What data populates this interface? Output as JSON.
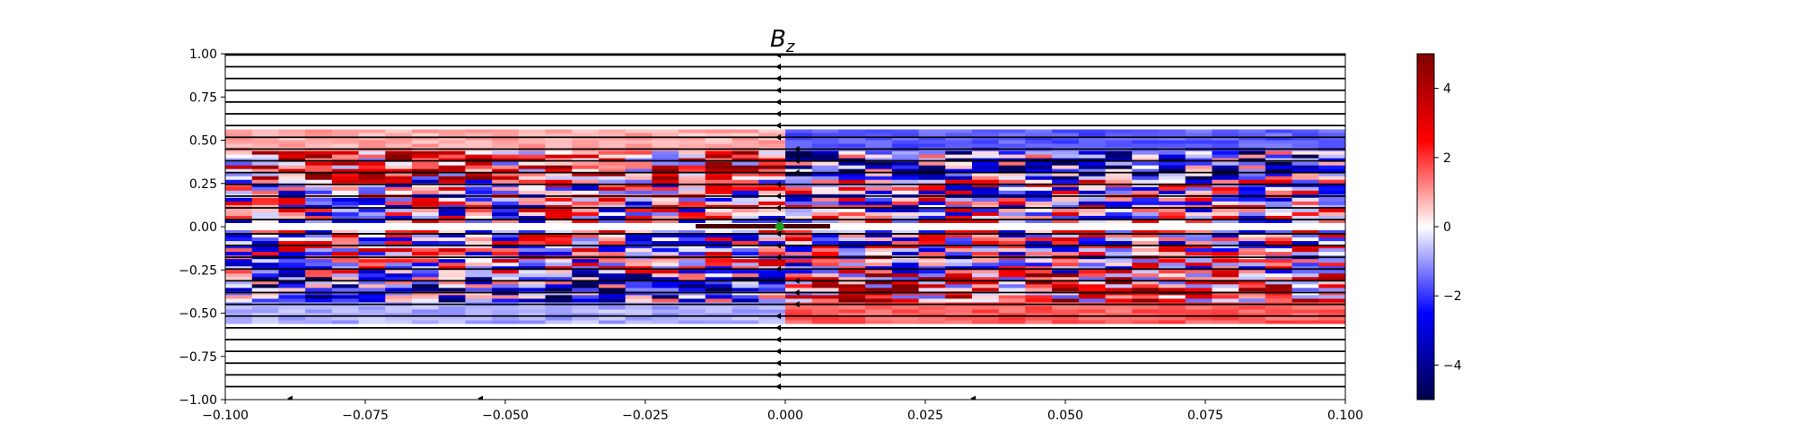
{
  "chart_data": {
    "type": "heatmap",
    "title": "B",
    "title_subscript": "z",
    "xlim": [
      -0.1,
      0.1
    ],
    "ylim": [
      -1.0,
      1.0
    ],
    "xticks": [
      -0.1,
      -0.075,
      -0.05,
      -0.025,
      0.0,
      0.025,
      0.05,
      0.075,
      0.1
    ],
    "xtick_labels": [
      "−0.100",
      "−0.075",
      "−0.050",
      "−0.025",
      "0.000",
      "0.025",
      "0.050",
      "0.075",
      "0.100"
    ],
    "yticks": [
      1.0,
      0.75,
      0.5,
      0.25,
      0.0,
      -0.25,
      -0.5,
      -0.75,
      -1.0
    ],
    "ytick_labels": [
      "1.00",
      "0.75",
      "0.50",
      "0.25",
      "0.00",
      "−0.25",
      "−0.50",
      "−0.75",
      "−1.00"
    ],
    "colorbar": {
      "range": [
        -5,
        5
      ],
      "ticks": [
        4,
        2,
        0,
        -2,
        -4
      ],
      "tick_labels": [
        "4",
        "2",
        "0",
        "−2",
        "−4"
      ],
      "colormap": "seismic"
    },
    "field_line_y": [
      0.993,
      0.925,
      0.857,
      0.789,
      0.721,
      0.653,
      0.585,
      0.517,
      0.449,
      0.381,
      0.313,
      0.245,
      0.177,
      0.109,
      0.041,
      -0.041,
      -0.109,
      -0.177,
      -0.245,
      -0.313,
      -0.381,
      -0.449,
      -0.517,
      -0.585,
      -0.653,
      -0.721,
      -0.789,
      -0.857,
      -0.925
    ],
    "marker": {
      "x": -0.001,
      "y": 0.0,
      "color": "#1ca11c"
    },
    "current_sheet": {
      "x": [
        -0.016,
        0.008
      ],
      "y": 0.0
    }
  }
}
